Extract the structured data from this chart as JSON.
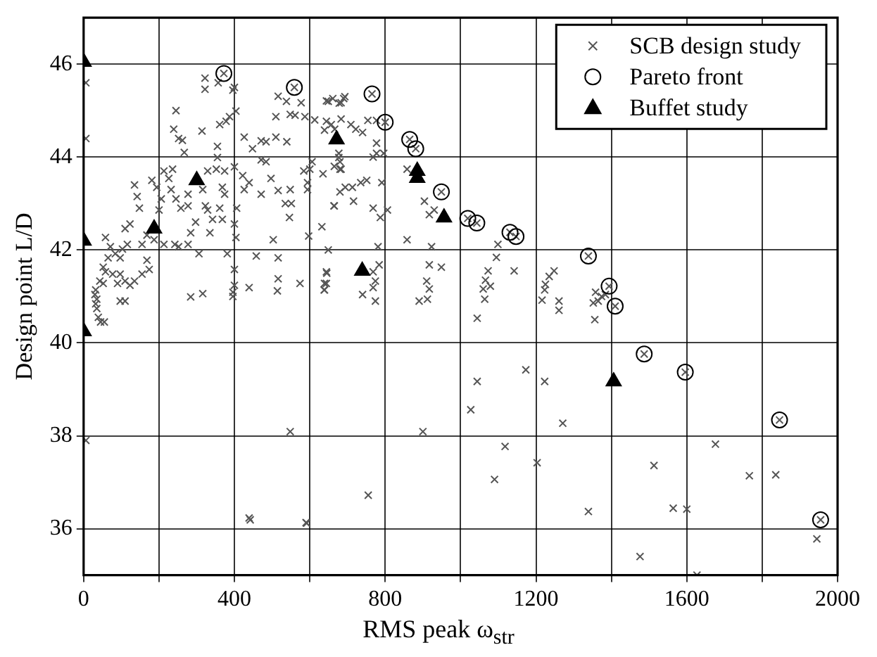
{
  "chart_data": {
    "type": "scatter",
    "xlabel": "RMS peak ω$_{str}$",
    "ylabel": "Design point L/D",
    "xlim": [
      0,
      2000
    ],
    "ylim": [
      35,
      47
    ],
    "xticks": [
      0,
      {
        "value": 200,
        "label": null
      },
      400,
      {
        "value": 600,
        "label": null
      },
      800,
      {
        "value": 1000,
        "label": null
      },
      1200,
      {
        "value": 1400,
        "label": null
      },
      1600,
      {
        "value": 1800,
        "label": null
      },
      2000
    ],
    "yticks": [
      36,
      38,
      40,
      42,
      44,
      46
    ],
    "grid": true,
    "legend": "top right",
    "series": [
      {
        "name": "SCB design study",
        "color": "#555555",
        "marker": "cross",
        "x": [
          6,
          6,
          6,
          322,
          322,
          357,
          400,
          396,
          245,
          239,
          252,
          262,
          267,
          314,
          361,
          378,
          387,
          404,
          426,
          448,
          471,
          484,
          510,
          516,
          538,
          510,
          548,
          577,
          561,
          587,
          613,
          649,
          678,
          693,
          639,
          677,
          680,
          539,
          355,
          355,
          329,
          352,
          374,
          400,
          422,
          439,
          426,
          471,
          471,
          484,
          516,
          497,
          535,
          548,
          584,
          594,
          594,
          606,
          600,
          635,
          665,
          694,
          716,
          680,
          135,
          142,
          148,
          181,
          194,
          213,
          226,
          236,
          232,
          245,
          258,
          206,
          200,
          277,
          316,
          323,
          329,
          342,
          368,
          277,
          297,
          284,
          335,
          361,
          406,
          400,
          404,
          374,
          368,
          306,
          252,
          277,
          242,
          381,
          400,
          400,
          396,
          396,
          439,
          284,
          316,
          458,
          503,
          516,
          516,
          514,
          546,
          551,
          574,
          597,
          632,
          649,
          645,
          639,
          639,
          665,
          680,
          548,
          439,
          590,
          58,
          71,
          84,
          65,
          97,
          103,
          116,
          110,
          123,
          58,
          77,
          97,
          110,
          90,
          123,
          135,
          155,
          174,
          168,
          155,
          52,
          97,
          110,
          168,
          187,
          213,
          32,
          35,
          35,
          39,
          45,
          43,
          52,
          30,
          32,
          55,
          644,
          661,
          690,
          683,
          644,
          657,
          666,
          683,
          709,
          722,
          740,
          754,
          777,
          777,
          777,
          768,
          796,
          677,
          683,
          713,
          735,
          751,
          791,
          664,
          768,
          787,
          806,
          858,
          904,
          917,
          930,
          858,
          923,
          917,
          949,
          910,
          917,
          890,
          912,
          781,
          784,
          768,
          774,
          768,
          740,
          774,
          644,
          644,
          638,
          1099,
          1095,
          1073,
          1066,
          1079,
          1060,
          1064,
          1044,
          1142,
          1248,
          1235,
          1225,
          1223,
          1216,
          1261,
          1261,
          1358,
          1365,
          1374,
          1384,
          1352,
          1356,
          1044,
          1027,
          1173,
          1223,
          1271,
          1118,
          1203,
          1090,
          1339,
          900,
          755,
          1476,
          1627,
          442,
          592,
          1676,
          1513,
          1766,
          1836,
          1564,
          1600,
          1945,
          372,
          559,
          765,
          800,
          865,
          881,
          949,
          1019,
          1043,
          1131,
          1147,
          1339,
          1394,
          1410,
          1487,
          1596,
          1846,
          1955
        ],
        "values": [
          45.6,
          44.4,
          37.9,
          45.7,
          45.46,
          45.6,
          45.5,
          45.44,
          45.0,
          44.6,
          44.4,
          44.36,
          44.1,
          44.56,
          44.7,
          44.77,
          44.87,
          44.99,
          44.43,
          44.18,
          44.35,
          44.33,
          44.43,
          45.31,
          45.2,
          44.87,
          44.92,
          45.17,
          44.9,
          44.87,
          44.8,
          45.2,
          45.16,
          45.3,
          44.58,
          43.99,
          43.74,
          44.33,
          44.23,
          43.99,
          43.7,
          43.74,
          43.7,
          43.79,
          43.6,
          43.45,
          43.3,
          43.2,
          43.94,
          43.9,
          43.28,
          43.54,
          43.0,
          43.3,
          43.7,
          43.45,
          43.3,
          43.9,
          43.74,
          43.64,
          43.8,
          43.35,
          43.05,
          43.9,
          43.4,
          43.15,
          42.9,
          43.5,
          43.35,
          43.7,
          43.54,
          43.74,
          43.3,
          43.1,
          42.9,
          43.1,
          42.86,
          43.2,
          43.3,
          42.95,
          42.86,
          42.66,
          42.66,
          42.95,
          42.6,
          42.37,
          42.37,
          42.9,
          42.9,
          42.56,
          42.27,
          43.2,
          43.35,
          41.92,
          42.07,
          42.12,
          42.12,
          41.92,
          41.58,
          41.24,
          41.09,
          41.0,
          41.19,
          40.99,
          41.06,
          41.87,
          42.22,
          41.83,
          41.38,
          41.12,
          42.7,
          43.0,
          41.28,
          42.3,
          42.5,
          42.0,
          41.5,
          41.28,
          41.14,
          42.95,
          43.25,
          38.09,
          36.23,
          36.13,
          42.27,
          42.07,
          41.92,
          41.83,
          41.83,
          42.02,
          42.12,
          42.46,
          42.56,
          41.53,
          41.48,
          41.48,
          41.33,
          41.28,
          41.24,
          41.33,
          41.48,
          41.58,
          41.78,
          42.12,
          41.63,
          40.9,
          40.9,
          42.32,
          42.22,
          42.12,
          41.14,
          40.94,
          40.74,
          40.55,
          40.45,
          41.33,
          41.28,
          41.04,
          40.84,
          40.45,
          45.21,
          45.26,
          45.26,
          45.17,
          44.77,
          44.7,
          44.6,
          44.82,
          44.7,
          44.6,
          44.53,
          44.79,
          44.79,
          44.3,
          44.08,
          44.0,
          44.08,
          44.08,
          43.74,
          43.35,
          43.45,
          43.5,
          43.45,
          42.95,
          42.9,
          42.7,
          42.86,
          43.74,
          43.05,
          42.76,
          42.86,
          42.22,
          42.07,
          41.68,
          41.63,
          41.33,
          41.16,
          40.9,
          40.94,
          42.07,
          41.68,
          41.53,
          41.33,
          41.19,
          41.04,
          40.9,
          41.53,
          41.28,
          41.14,
          42.12,
          41.84,
          41.55,
          41.35,
          41.22,
          41.16,
          40.94,
          40.53,
          41.55,
          41.55,
          41.43,
          41.26,
          41.14,
          40.92,
          40.9,
          40.7,
          41.09,
          40.9,
          41.0,
          41.04,
          40.86,
          40.5,
          39.17,
          38.56,
          39.42,
          39.17,
          38.27,
          37.77,
          37.42,
          37.06,
          36.37,
          38.09,
          36.72,
          35.4,
          35.0,
          36.19,
          36.12,
          37.82,
          37.36,
          37.14,
          37.16,
          36.44,
          36.42,
          35.78,
          45.8,
          45.5,
          45.36,
          44.75,
          44.38,
          44.18,
          43.25,
          42.68,
          42.58,
          42.38,
          42.29,
          41.87,
          41.22,
          40.79,
          39.76,
          39.37,
          38.34,
          36.19
        ]
      },
      {
        "name": "Pareto front",
        "color": "#000000",
        "marker": "circle",
        "x": [
          372,
          559,
          765,
          800,
          865,
          881,
          949,
          1019,
          1043,
          1131,
          1147,
          1339,
          1394,
          1410,
          1487,
          1596,
          1846,
          1955
        ],
        "values": [
          45.8,
          45.5,
          45.36,
          44.75,
          44.38,
          44.18,
          43.25,
          42.68,
          42.58,
          42.38,
          42.29,
          41.87,
          41.22,
          40.79,
          39.76,
          39.37,
          38.34,
          36.19
        ]
      },
      {
        "name": "Buffet study",
        "color": "#000000",
        "marker": "triangle",
        "x": [
          0,
          0,
          0,
          187,
          300,
          671,
          885,
          885,
          956,
          739,
          1406
        ],
        "values": [
          46.05,
          42.2,
          40.25,
          42.46,
          43.5,
          44.38,
          43.7,
          43.55,
          42.7,
          41.55,
          39.17
        ]
      }
    ]
  }
}
